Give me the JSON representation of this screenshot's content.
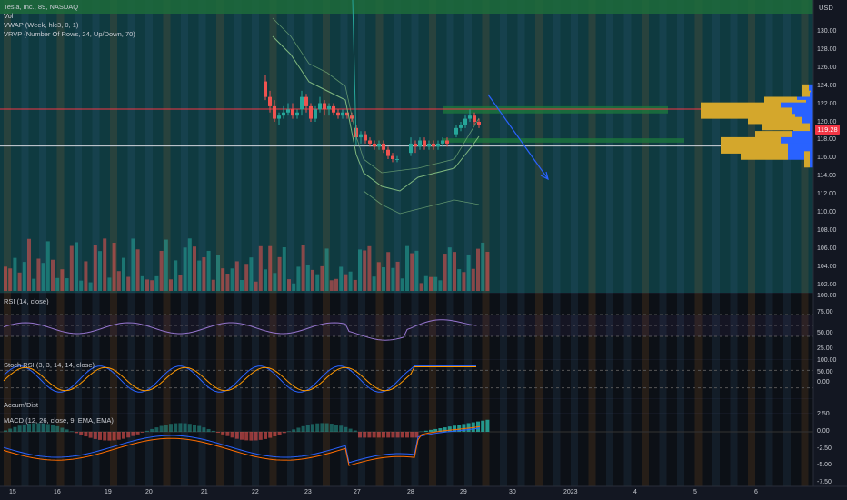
{
  "legend": {
    "symbol": "Tesla, Inc., 89, NASDAQ",
    "vol": "Vol",
    "vwap": "VWAP (Week, hlc3, 0, 1)",
    "vrvp": "VRVP (Number Of Rows, 24, Up/Down, 70)"
  },
  "panes": {
    "rsi": "RSI (14, close)",
    "stoch": "Stoch RSI (3, 3, 14, 14, close)",
    "accum": "Accum/Dist",
    "macd": "MACD (12, 26, close, 9, EMA, EMA)"
  },
  "price_axis": {
    "currency": "USD",
    "last_price": "119.28",
    "ticks": [
      "130.00",
      "128.00",
      "126.00",
      "124.00",
      "122.00",
      "120.00",
      "118.00",
      "116.00",
      "114.00",
      "112.00",
      "110.00",
      "108.00",
      "106.00",
      "104.00",
      "102.00"
    ]
  },
  "rsi_axis": {
    "ticks": [
      "100.00",
      "75.00",
      "50.00",
      "25.00"
    ]
  },
  "stoch_axis": {
    "ticks": [
      "100.00",
      "50.00",
      "0.00"
    ]
  },
  "macd_axis": {
    "ticks": [
      "2.50",
      "0.00",
      "-2.50",
      "-5.00",
      "-7.50"
    ]
  },
  "time_axis": {
    "ticks": [
      "15",
      "16",
      "19",
      "20",
      "21",
      "22",
      "23",
      "27",
      "28",
      "29",
      "30",
      "2023",
      "4",
      "5",
      "6"
    ]
  },
  "colors": {
    "up": "#26a69a",
    "down": "#ef5350",
    "zone": "#1e7a3c",
    "hline_red": "#f23645",
    "hline_white": "#d1d4dc",
    "arrow": "#2962ff",
    "vp_up": "#2962ff",
    "vp_down": "#d4a72c"
  }
}
